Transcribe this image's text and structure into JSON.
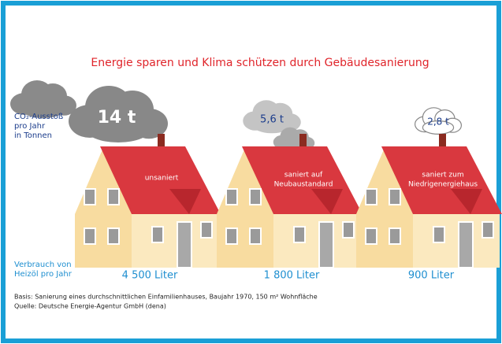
{
  "title": "Energie sparen und Klima schützen durch Gebäudesanierung",
  "co2_label": [
    "CO₂-Ausstoß",
    "pro Jahr",
    "in Tonnen"
  ],
  "consumption_label": [
    "Verbrauch von",
    "Heizöl pro Jahr"
  ],
  "houses": [
    {
      "label": [
        "unsaniert"
      ],
      "co2": "14 t",
      "consumption": "4 500 Liter"
    },
    {
      "label": [
        "saniert auf",
        "Neubaustandard"
      ],
      "co2": "5,6 t",
      "consumption": "1 800 Liter"
    },
    {
      "label": [
        "saniert zum",
        "Niedrigenergiehaus"
      ],
      "co2": "2,8 t",
      "consumption": "900 Liter"
    }
  ],
  "footer": [
    "Basis: Sanierung eines durchschnittlichen Einfamilienhauses, Baujahr 1970, 150 m² Wohnfläche",
    "Quelle: Deutsche Energie-Agentur GmbH (dena)"
  ]
}
